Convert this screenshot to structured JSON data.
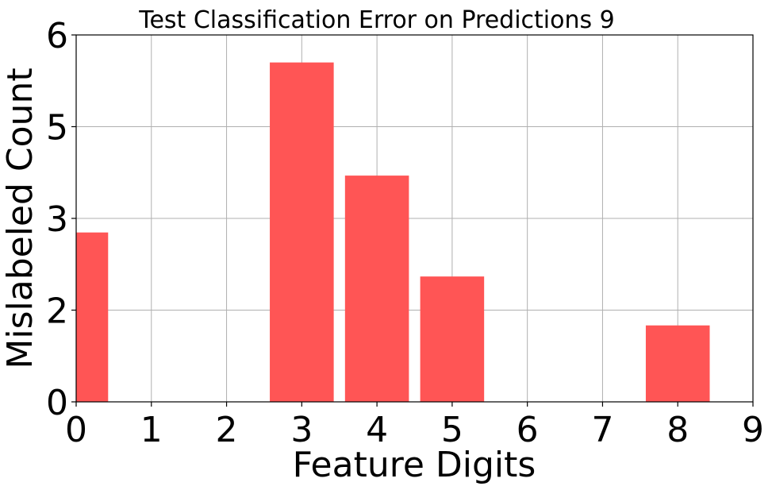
{
  "chart_data": {
    "type": "bar",
    "title": "Test Classification Error on Predictions 9",
    "xlabel": "Feature Digits",
    "ylabel": "Mislabeled Count",
    "x": [
      0,
      3,
      4,
      5,
      8
    ],
    "values": [
      2.77,
      5.55,
      3.7,
      2.05,
      1.25
    ],
    "bar_width": 0.85,
    "xlim": [
      0,
      9
    ],
    "ylim": [
      0,
      6
    ],
    "x_ticks": [
      0,
      1,
      2,
      3,
      4,
      5,
      6,
      7,
      8,
      9
    ],
    "x_tick_labels": [
      "0",
      "1",
      "2",
      "3",
      "4",
      "5",
      "6",
      "7",
      "8",
      "9"
    ],
    "y_ticks": [
      0,
      1.5,
      3,
      4.5,
      6
    ],
    "y_tick_labels": [
      "0",
      "2",
      "3",
      "5",
      "6"
    ],
    "grid": true,
    "bar_color": "#ff5555"
  }
}
